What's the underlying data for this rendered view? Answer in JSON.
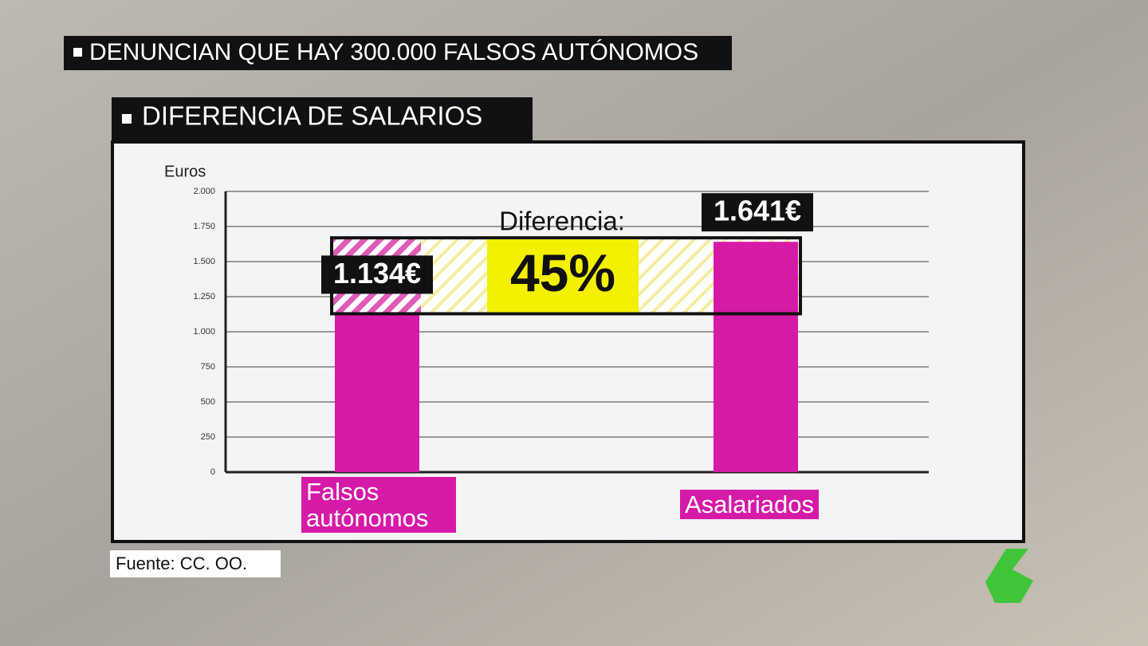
{
  "headline": "DENUNCIAN QUE HAY 300.000 FALSOS AUTÓNOMOS",
  "chart_data": {
    "type": "bar",
    "title": "DIFERENCIA DE SALARIOS",
    "y_label": "Euros",
    "categories": [
      "Falsos autónomos",
      "Asalariados"
    ],
    "values": [
      1134,
      1641
    ],
    "value_labels": [
      "1.134€",
      "1.641€"
    ],
    "color": "#d61aa8",
    "ylim": [
      0,
      2000
    ],
    "yticks": [
      0,
      250,
      500,
      750,
      {
        "value": 1000,
        "label": "1.000"
      },
      {
        "value": 1250,
        "label": "1.250"
      },
      {
        "value": 1500,
        "label": "1.500"
      },
      {
        "value": 1750,
        "label": "1.750"
      },
      {
        "value": 2000,
        "label": "2.000"
      }
    ],
    "grid": true,
    "annotation": {
      "label": "Diferencia:",
      "value": 45,
      "value_label": "45%"
    },
    "source": "Fuente: CC. OO."
  }
}
